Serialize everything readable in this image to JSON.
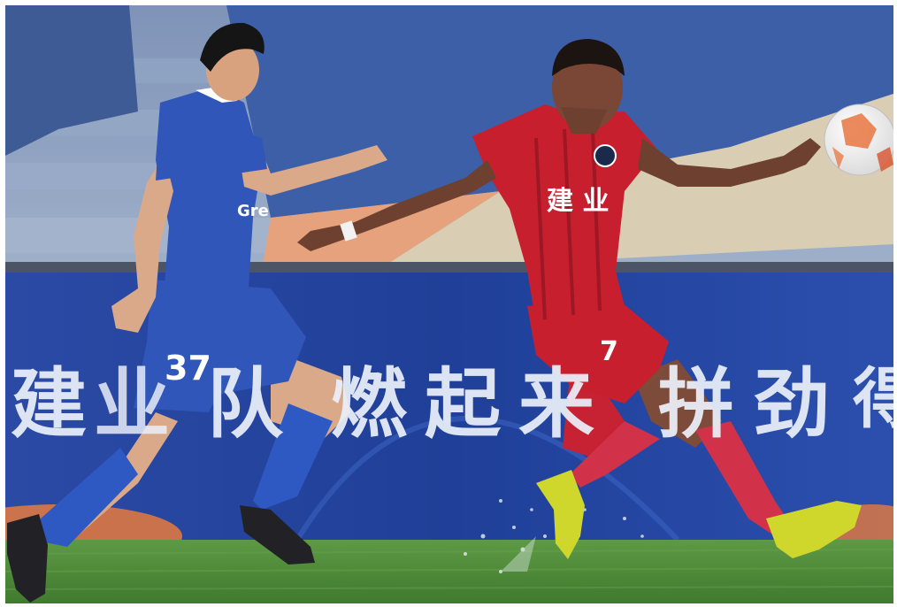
{
  "photo": {
    "subject": "football-match",
    "board_banner": "建业队 燃起来 拼劲 得",
    "board_chars": [
      "建",
      "业",
      "队",
      "燃",
      "起",
      "来",
      "拼",
      "劲",
      "得"
    ],
    "blue_player_number": "37",
    "blue_player_shirt_text": "Gre",
    "red_player_number": "7",
    "red_player_shirt_text": "建 业",
    "colors": {
      "blue_kit": "#2f56b8",
      "red_kit": "#c81f2e",
      "board_bg": "#22409a",
      "pitch": "#4f8a3a",
      "boots": "#d5e02a"
    }
  }
}
